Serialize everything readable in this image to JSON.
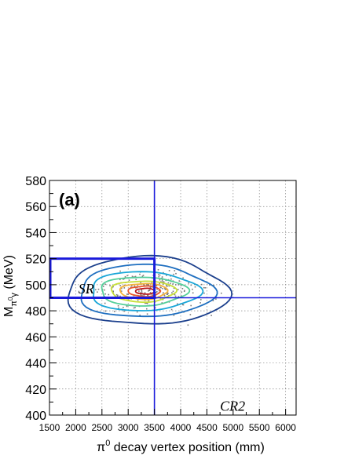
{
  "chart_data": {
    "type": "heatmap",
    "panel_label": "(a)",
    "xlabel": {
      "main": "π",
      "sup": "0",
      "rest": " decay vertex position (mm)"
    },
    "ylabel": {
      "main": "M",
      "sub": "π",
      "subsup": "0",
      "subrest": "γ",
      "rest": " (MeV)"
    },
    "xlim": [
      1500,
      6200
    ],
    "ylim": [
      400,
      580
    ],
    "x_ticks": [
      "1500",
      "2000",
      "2500",
      "3000",
      "3500",
      "4000",
      "4500",
      "5000",
      "5500",
      "6000"
    ],
    "y_ticks": [
      "400",
      "420",
      "440",
      "460",
      "480",
      "500",
      "520",
      "540",
      "560",
      "580"
    ],
    "grid": true,
    "cut_lines": {
      "x_cut": 3500,
      "y_cut": 490
    },
    "signal_box": {
      "x": [
        1500,
        3500
      ],
      "y": [
        490,
        520
      ]
    },
    "region_labels": [
      {
        "text": "SR",
        "x": 2050,
        "y": 497
      },
      {
        "text": "CR2",
        "x": 4750,
        "y": 407
      }
    ],
    "distribution": {
      "center_x": 3300,
      "center_y": 495,
      "peak_count": 1.0
    },
    "contour_levels": [
      {
        "level": 0.05,
        "color": "#1b3f8c",
        "rx": 1600,
        "ry": 26,
        "dx": 0,
        "dy": 0
      },
      {
        "level": 0.15,
        "color": "#1f6fc0",
        "rx": 1330,
        "ry": 20,
        "dx": -20,
        "dy": 0
      },
      {
        "level": 0.3,
        "color": "#19a6d8",
        "rx": 1080,
        "ry": 15,
        "dx": -40,
        "dy": 0
      },
      {
        "level": 0.45,
        "color": "#55cf9a",
        "rx": 860,
        "ry": 11,
        "dx": -50,
        "dy": 0
      },
      {
        "level": 0.6,
        "color": "#c8e03a",
        "rx": 640,
        "ry": 8,
        "dx": -40,
        "dy": 0
      },
      {
        "level": 0.72,
        "color": "#f3b23a",
        "rx": 470,
        "ry": 6,
        "dx": -20,
        "dy": 0
      },
      {
        "level": 0.85,
        "color": "#e8562b",
        "rx": 320,
        "ry": 4,
        "dx": 0,
        "dy": 0
      },
      {
        "level": 0.95,
        "color": "#b8161b",
        "rx": 190,
        "ry": 2.2,
        "dx": 20,
        "dy": 0
      }
    ]
  }
}
